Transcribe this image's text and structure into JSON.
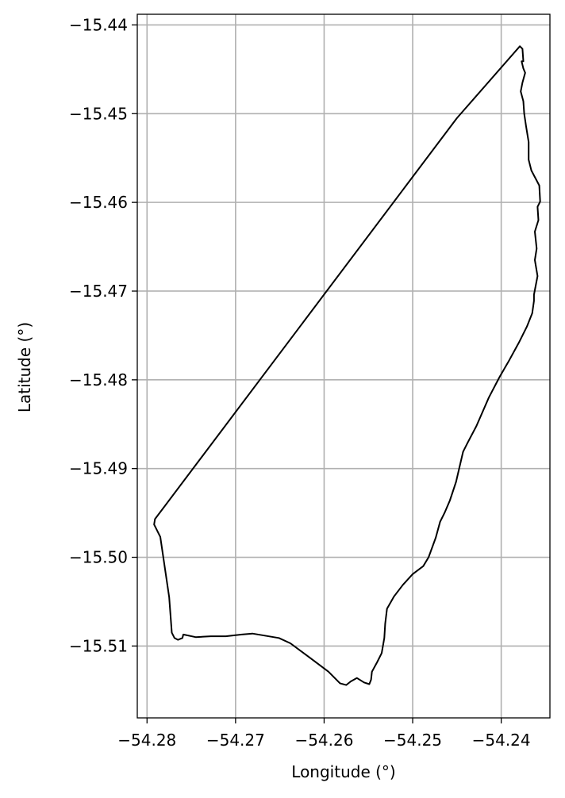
{
  "chart_data": {
    "type": "line",
    "title": "",
    "xlabel": "Longitude (°)",
    "ylabel": "Latitude (°)",
    "xlim": [
      -54.2811,
      -54.2345
    ],
    "ylim": [
      -15.5181,
      -15.4388
    ],
    "grid": true,
    "x_ticks": [
      -54.28,
      -54.27,
      -54.26,
      -54.25,
      -54.24
    ],
    "x_tick_labels": [
      "−54.28",
      "−54.27",
      "−54.26",
      "−54.25",
      "−54.24"
    ],
    "y_ticks": [
      -15.44,
      -15.45,
      -15.46,
      -15.47,
      -15.48,
      -15.49,
      -15.5,
      -15.51
    ],
    "y_tick_labels": [
      "−15.44",
      "−15.45",
      "−15.46",
      "−15.47",
      "−15.48",
      "−15.49",
      "−15.50",
      "−15.51"
    ],
    "series": [
      {
        "name": "",
        "color": "#000000",
        "closed": true,
        "points": [
          [
            -54.2379,
            -15.4424
          ],
          [
            -54.2376,
            -15.4427
          ],
          [
            -54.2375,
            -15.4441
          ],
          [
            -54.2377,
            -15.4441
          ],
          [
            -54.2375,
            -15.4449
          ],
          [
            -54.2373,
            -15.4454
          ],
          [
            -54.2376,
            -15.4465
          ],
          [
            -54.2378,
            -15.4475
          ],
          [
            -54.2375,
            -15.4486
          ],
          [
            -54.2374,
            -15.45
          ],
          [
            -54.2372,
            -15.4514
          ],
          [
            -54.2369,
            -15.4532
          ],
          [
            -54.2369,
            -15.4552
          ],
          [
            -54.2366,
            -15.4564
          ],
          [
            -54.2357,
            -15.4581
          ],
          [
            -54.2356,
            -15.4599
          ],
          [
            -54.2359,
            -15.4605
          ],
          [
            -54.2358,
            -15.462
          ],
          [
            -54.2362,
            -15.4633
          ],
          [
            -54.236,
            -15.4652
          ],
          [
            -54.2362,
            -15.4665
          ],
          [
            -54.2359,
            -15.4683
          ],
          [
            -54.2363,
            -15.4704
          ],
          [
            -54.2363,
            -15.4711
          ],
          [
            -54.2365,
            -15.4725
          ],
          [
            -54.2371,
            -15.474
          ],
          [
            -54.238,
            -15.4758
          ],
          [
            -54.2391,
            -15.4778
          ],
          [
            -54.2402,
            -15.4797
          ],
          [
            -54.2414,
            -15.482
          ],
          [
            -54.2428,
            -15.4852
          ],
          [
            -54.2438,
            -15.4871
          ],
          [
            -54.2443,
            -15.4881
          ],
          [
            -54.2451,
            -15.4915
          ],
          [
            -54.2458,
            -15.4936
          ],
          [
            -54.2464,
            -15.495
          ],
          [
            -54.2469,
            -15.496
          ],
          [
            -54.2474,
            -15.4978
          ],
          [
            -54.2482,
            -15.5
          ],
          [
            -54.2488,
            -15.501
          ],
          [
            -54.25,
            -15.5019
          ],
          [
            -54.2511,
            -15.5031
          ],
          [
            -54.2521,
            -15.5044
          ],
          [
            -54.2529,
            -15.5058
          ],
          [
            -54.2531,
            -15.5075
          ],
          [
            -54.2532,
            -15.5091
          ],
          [
            -54.2535,
            -15.5108
          ],
          [
            -54.254,
            -15.5118
          ],
          [
            -54.2546,
            -15.5129
          ],
          [
            -54.2547,
            -15.5138
          ],
          [
            -54.2549,
            -15.5143
          ],
          [
            -54.2555,
            -15.5141
          ],
          [
            -54.2563,
            -15.5136
          ],
          [
            -54.257,
            -15.514
          ],
          [
            -54.2575,
            -15.5144
          ],
          [
            -54.2582,
            -15.5142
          ],
          [
            -54.2595,
            -15.5129
          ],
          [
            -54.2615,
            -15.5114
          ],
          [
            -54.2638,
            -15.5097
          ],
          [
            -54.2651,
            -15.5091
          ],
          [
            -54.2681,
            -15.5086
          ],
          [
            -54.2693,
            -15.5087
          ],
          [
            -54.2711,
            -15.5089
          ],
          [
            -54.2719,
            -15.5089
          ],
          [
            -54.2728,
            -15.5089
          ],
          [
            -54.2745,
            -15.509
          ],
          [
            -54.2759,
            -15.5087
          ],
          [
            -54.276,
            -15.5091
          ],
          [
            -54.2765,
            -15.5093
          ],
          [
            -54.2769,
            -15.5091
          ],
          [
            -54.2772,
            -15.5085
          ],
          [
            -54.2775,
            -15.5045
          ],
          [
            -54.2785,
            -15.4977
          ],
          [
            -54.2792,
            -15.4963
          ],
          [
            -54.2791,
            -15.4957
          ],
          [
            -54.245,
            -15.4505
          ],
          [
            -54.2379,
            -15.4424
          ]
        ]
      }
    ]
  }
}
